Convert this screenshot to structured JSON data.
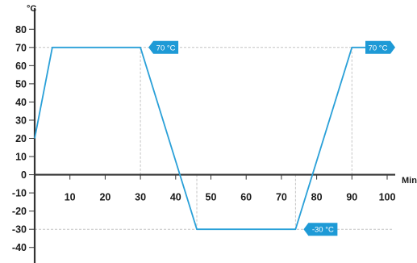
{
  "chart_data": {
    "type": "line",
    "xlabel": "Min",
    "ylabel": "°C",
    "xlim": [
      0,
      100
    ],
    "ylim": [
      -45,
      85
    ],
    "x_ticks": [
      10,
      20,
      30,
      40,
      50,
      60,
      70,
      80,
      90,
      100
    ],
    "y_ticks": [
      80,
      70,
      60,
      50,
      40,
      30,
      20,
      10,
      0,
      -10,
      -20,
      -30,
      -40
    ],
    "series": [
      {
        "color": "#2aa0d8",
        "x": [
          0,
          5,
          30,
          46,
          74,
          90,
          100
        ],
        "y": [
          20,
          70,
          70,
          -30,
          -30,
          70,
          70
        ]
      }
    ],
    "guides": {
      "color": "#c4c4c4",
      "horizontal": [
        70,
        -30
      ],
      "vertical": [
        30,
        46,
        74,
        90
      ]
    },
    "annotations": [
      {
        "label": "70 °C",
        "x": 30,
        "y": 70,
        "side": "right"
      },
      {
        "label": "-30 °C",
        "x": 74,
        "y": -30,
        "side": "right"
      },
      {
        "label": "70 °C",
        "x": 100,
        "y": 70,
        "side": "left"
      }
    ],
    "annotation_color": "#1e9ad6",
    "axis_color": "#333333",
    "grid": false
  }
}
